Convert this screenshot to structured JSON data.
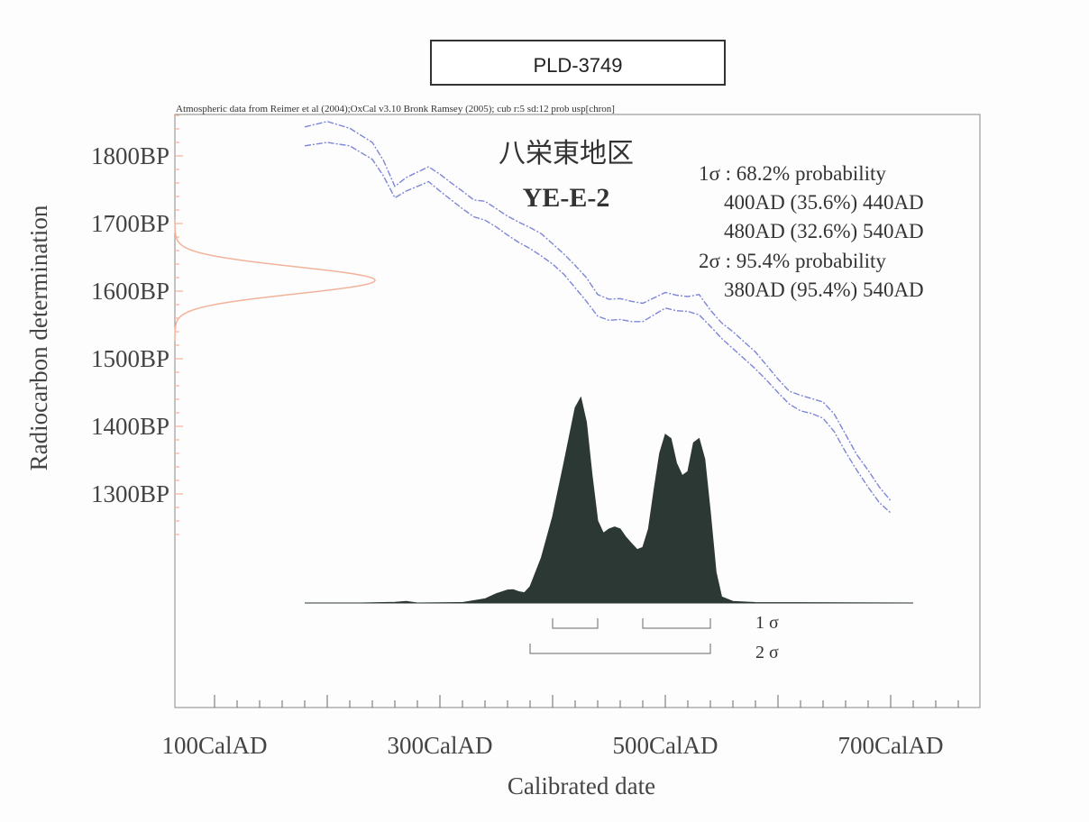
{
  "sample_id": "PLD-3749",
  "credit_line": "Atmospheric data from Reimer et al (2004);OxCal v3.10 Bronk Ramsey (2005); cub r:5 sd:12 prob usp[chron]",
  "site_name": "八栄東地区",
  "sample_code": "YE-E-2",
  "results": {
    "sigma1_header": "1σ : 68.2% probability",
    "sigma1_ranges": [
      "400AD (35.6%) 440AD",
      "480AD (32.6%) 540AD"
    ],
    "sigma2_header": "2σ : 95.4% probability",
    "sigma2_ranges": [
      "380AD (95.4%) 540AD"
    ]
  },
  "sigma_bar_labels": {
    "one": "1 σ",
    "two": "2 σ"
  },
  "colors": {
    "curve": "#7d86d6",
    "measurement": "#f2b39a",
    "posterior": "#2c3833",
    "axis": "#555555",
    "text": "#333333"
  },
  "chart_data": {
    "type": "area",
    "xlabel": "Calibrated date",
    "ylabel": "Radiocarbon determination",
    "x_tick_labels": [
      {
        "value": 100,
        "label": "100CalAD"
      },
      {
        "value": 300,
        "label": "300CalAD"
      },
      {
        "value": 500,
        "label": "500CalAD"
      },
      {
        "value": 700,
        "label": "700CalAD"
      }
    ],
    "y_tick_labels": [
      {
        "value": 1800,
        "label": "1800BP"
      },
      {
        "value": 1700,
        "label": "1700BP"
      },
      {
        "value": 1600,
        "label": "1600BP"
      },
      {
        "value": 1500,
        "label": "1500BP"
      },
      {
        "value": 1400,
        "label": "1400BP"
      },
      {
        "value": 1300,
        "label": "1300BP"
      }
    ],
    "xlim": [
      100,
      820
    ],
    "ylim": [
      1200,
      1860
    ],
    "x_minor_tick_step": 20,
    "y_minor_tick_step": 20,
    "calibration_curve": {
      "x": [
        180,
        200,
        220,
        240,
        250,
        260,
        270,
        280,
        290,
        300,
        310,
        320,
        330,
        340,
        350,
        360,
        370,
        380,
        390,
        400,
        410,
        420,
        430,
        440,
        450,
        460,
        470,
        480,
        490,
        500,
        510,
        520,
        530,
        540,
        550,
        560,
        570,
        580,
        590,
        600,
        610,
        620,
        630,
        640,
        650,
        660,
        670,
        680,
        690,
        700
      ],
      "upper": [
        1843,
        1851,
        1841,
        1820,
        1793,
        1755,
        1768,
        1776,
        1784,
        1773,
        1760,
        1748,
        1735,
        1733,
        1722,
        1711,
        1702,
        1694,
        1685,
        1670,
        1655,
        1638,
        1620,
        1595,
        1588,
        1589,
        1585,
        1582,
        1590,
        1598,
        1594,
        1592,
        1595,
        1572,
        1553,
        1540,
        1525,
        1510,
        1490,
        1470,
        1452,
        1446,
        1441,
        1436,
        1418,
        1388,
        1358,
        1335,
        1310,
        1290
      ],
      "lower": [
        1815,
        1820,
        1815,
        1795,
        1770,
        1738,
        1748,
        1755,
        1762,
        1748,
        1735,
        1722,
        1710,
        1705,
        1695,
        1683,
        1672,
        1663,
        1652,
        1640,
        1625,
        1605,
        1585,
        1563,
        1557,
        1558,
        1555,
        1555,
        1565,
        1575,
        1571,
        1570,
        1565,
        1548,
        1530,
        1515,
        1500,
        1485,
        1468,
        1450,
        1433,
        1423,
        1419,
        1412,
        1392,
        1362,
        1335,
        1310,
        1287,
        1272
      ]
    },
    "measurement": {
      "mean_bp": 1616,
      "sigma_bp": 20
    },
    "posterior": {
      "x": [
        180,
        230,
        260,
        270,
        280,
        320,
        340,
        350,
        360,
        365,
        370,
        375,
        380,
        390,
        400,
        410,
        420,
        425,
        430,
        435,
        440,
        445,
        450,
        455,
        460,
        465,
        470,
        475,
        480,
        485,
        490,
        495,
        500,
        505,
        510,
        515,
        520,
        525,
        530,
        535,
        540,
        545,
        550,
        560,
        580,
        720
      ],
      "y": [
        0,
        0,
        0.003,
        0.008,
        0,
        0.002,
        0.02,
        0.045,
        0.063,
        0.065,
        0.055,
        0.05,
        0.08,
        0.22,
        0.42,
        0.68,
        0.95,
        1.0,
        0.88,
        0.62,
        0.4,
        0.34,
        0.36,
        0.37,
        0.36,
        0.32,
        0.29,
        0.26,
        0.27,
        0.36,
        0.55,
        0.73,
        0.82,
        0.8,
        0.68,
        0.62,
        0.64,
        0.78,
        0.8,
        0.7,
        0.44,
        0.15,
        0.03,
        0.008,
        0.002,
        0
      ]
    },
    "sigma1_ranges": [
      [
        400,
        440
      ],
      [
        480,
        540
      ]
    ],
    "sigma2_ranges": [
      [
        380,
        540
      ]
    ]
  }
}
